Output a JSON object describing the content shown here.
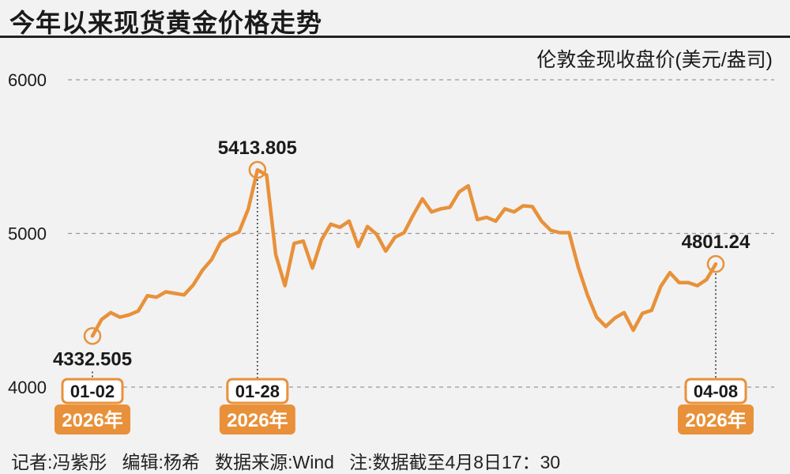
{
  "header": {
    "title": "今年以来现货黄金价格走势"
  },
  "footer": {
    "text": "记者:冯紫彤   编辑:杨希   数据来源:Wind   注:数据截至4月8日17：30"
  },
  "colors": {
    "line": "#e8913a",
    "badge": "#e8913a",
    "text": "#1a1a1a",
    "grid": "#999999"
  },
  "chart_data": {
    "type": "line",
    "ylabel": "伦敦金现收盘价(美元/盎司)",
    "ylim": [
      4000,
      6000
    ],
    "yticks": [
      4000,
      5000,
      6000
    ],
    "grid": "horizontal-dashed",
    "series": [
      {
        "values": [
          4332.505,
          4440,
          4485,
          4455,
          4470,
          4495,
          4595,
          4585,
          4620,
          4610,
          4600,
          4665,
          4760,
          4830,
          4945,
          4985,
          5010,
          5160,
          5413.805,
          5380,
          4860,
          4660,
          4935,
          4950,
          4775,
          4960,
          5060,
          5040,
          5080,
          4915,
          5045,
          4995,
          4885,
          4975,
          5005,
          5120,
          5225,
          5140,
          5160,
          5170,
          5270,
          5310,
          5090,
          5105,
          5080,
          5160,
          5140,
          5180,
          5175,
          5080,
          5020,
          5005,
          5005,
          4780,
          4600,
          4455,
          4395,
          4450,
          4485,
          4370,
          4480,
          4500,
          4655,
          4745,
          4680,
          4680,
          4660,
          4700,
          4801.24
        ]
      }
    ],
    "annotations": [
      {
        "index": 0,
        "value_label": "4332.505",
        "date": "01-02",
        "year": "2026年"
      },
      {
        "index": 18,
        "value_label": "5413.805",
        "date": "01-28",
        "year": "2026年"
      },
      {
        "index": 68,
        "value_label": "4801.24",
        "date": "04-08",
        "year": "2026年"
      }
    ]
  }
}
